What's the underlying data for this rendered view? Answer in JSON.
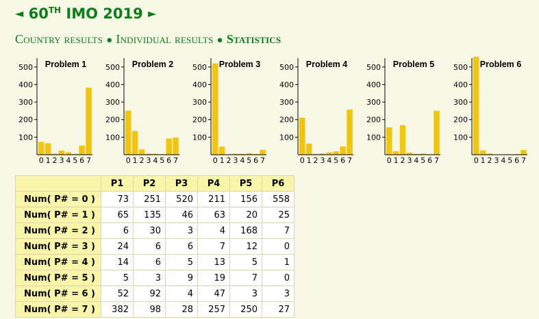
{
  "header": {
    "prev_arrow": "◄",
    "next_arrow": "►",
    "title_prefix": "60",
    "title_sup": "TH",
    "title_suffix": " IMO 2019"
  },
  "nav": {
    "country": "Country results",
    "individual": "Individual results",
    "statistics": "Statistics",
    "separator": "●"
  },
  "colors": {
    "bar": "#f2c40c",
    "green": "#0b7d1a",
    "header_bg": "#f9f5a9"
  },
  "chart_data": [
    {
      "type": "bar",
      "title": "Problem 1",
      "categories": [
        "0",
        "1",
        "2",
        "3",
        "4",
        "5",
        "6",
        "7"
      ],
      "values": [
        73,
        65,
        6,
        24,
        14,
        5,
        52,
        382
      ],
      "ylim": [
        0,
        550
      ],
      "yticks": [
        100,
        200,
        300,
        400,
        500
      ]
    },
    {
      "type": "bar",
      "title": "Problem 2",
      "categories": [
        "0",
        "1",
        "2",
        "3",
        "4",
        "5",
        "6",
        "7"
      ],
      "values": [
        251,
        135,
        30,
        6,
        6,
        3,
        92,
        98
      ],
      "ylim": [
        0,
        550
      ],
      "yticks": [
        100,
        200,
        300,
        400,
        500
      ]
    },
    {
      "type": "bar",
      "title": "Problem 3",
      "categories": [
        "0",
        "1",
        "2",
        "3",
        "4",
        "5",
        "6",
        "7"
      ],
      "values": [
        520,
        46,
        3,
        6,
        5,
        9,
        4,
        28
      ],
      "ylim": [
        0,
        550
      ],
      "yticks": [
        100,
        200,
        300,
        400,
        500
      ]
    },
    {
      "type": "bar",
      "title": "Problem 4",
      "categories": [
        "0",
        "1",
        "2",
        "3",
        "4",
        "5",
        "6",
        "7"
      ],
      "values": [
        211,
        63,
        4,
        7,
        13,
        19,
        47,
        257
      ],
      "ylim": [
        0,
        550
      ],
      "yticks": [
        100,
        200,
        300,
        400,
        500
      ]
    },
    {
      "type": "bar",
      "title": "Problem 5",
      "categories": [
        "0",
        "1",
        "2",
        "3",
        "4",
        "5",
        "6",
        "7"
      ],
      "values": [
        156,
        20,
        168,
        12,
        5,
        7,
        3,
        250
      ],
      "ylim": [
        0,
        550
      ],
      "yticks": [
        100,
        200,
        300,
        400,
        500
      ]
    },
    {
      "type": "bar",
      "title": "Problem 6",
      "categories": [
        "0",
        "1",
        "2",
        "3",
        "4",
        "5",
        "6",
        "7"
      ],
      "values": [
        558,
        25,
        7,
        0,
        1,
        0,
        3,
        27
      ],
      "ylim": [
        0,
        550
      ],
      "yticks": [
        100,
        200,
        300,
        400,
        500
      ]
    }
  ],
  "table": {
    "columns": [
      "P1",
      "P2",
      "P3",
      "P4",
      "P5",
      "P6"
    ],
    "rows": [
      {
        "label": "Num( P# = 0 )",
        "values": [
          "73",
          "251",
          "520",
          "211",
          "156",
          "558"
        ]
      },
      {
        "label": "Num( P# = 1 )",
        "values": [
          "65",
          "135",
          "46",
          "63",
          "20",
          "25"
        ]
      },
      {
        "label": "Num( P# = 2 )",
        "values": [
          "6",
          "30",
          "3",
          "4",
          "168",
          "7"
        ]
      },
      {
        "label": "Num( P# = 3 )",
        "values": [
          "24",
          "6",
          "6",
          "7",
          "12",
          "0"
        ]
      },
      {
        "label": "Num( P# = 4 )",
        "values": [
          "14",
          "6",
          "5",
          "13",
          "5",
          "1"
        ]
      },
      {
        "label": "Num( P# = 5 )",
        "values": [
          "5",
          "3",
          "9",
          "19",
          "7",
          "0"
        ]
      },
      {
        "label": "Num( P# = 6 )",
        "values": [
          "52",
          "92",
          "4",
          "47",
          "3",
          "3"
        ]
      },
      {
        "label": "Num( P# = 7 )",
        "values": [
          "382",
          "98",
          "28",
          "257",
          "250",
          "27"
        ]
      }
    ]
  }
}
